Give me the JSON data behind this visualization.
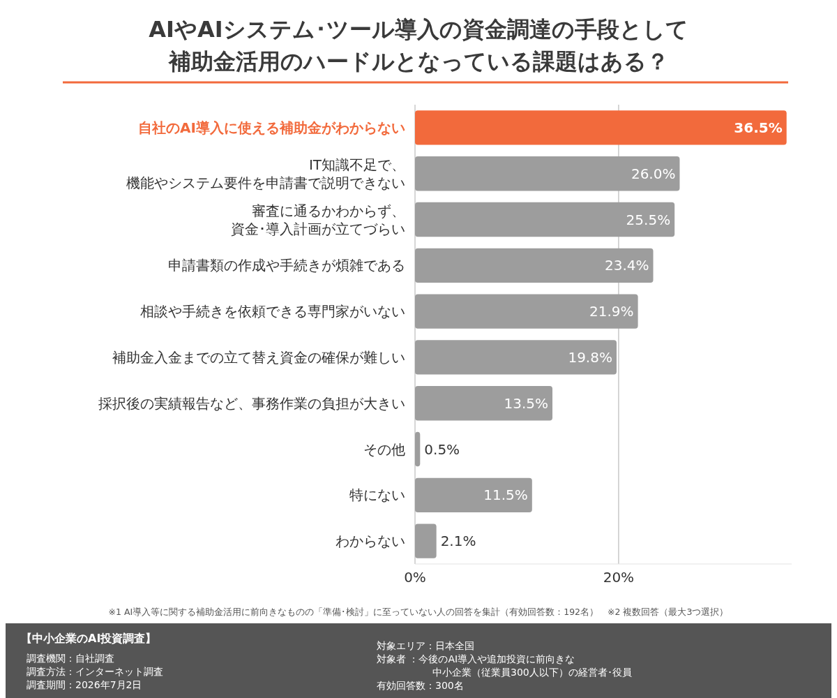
{
  "chart_data": {
    "type": "bar",
    "orientation": "horizontal",
    "title": "AIやAIシステム･ツール導入の資金調達の手段として補助金活用のハードルとなっている課題はある？",
    "categories": [
      "自社のAI導入に使える補助金がわからない",
      "IT知識不足で、機能やシステム要件を申請書で説明できない",
      "審査に通るかわからず、資金･導入計画が立てづらい",
      "申請書類の作成や手続きが煩雑である",
      "相談や手続きを依頼できる専門家がいない",
      "補助金入金までの立て替え資金の確保が難しい",
      "採択後の実績報告など、事務作業の負担が大きい",
      "その他",
      "特にない",
      "わからない"
    ],
    "values": [
      36.5,
      26.0,
      25.5,
      23.4,
      21.9,
      19.8,
      13.5,
      0.5,
      11.5,
      2.1
    ],
    "value_labels": [
      "36.5%",
      "26.0%",
      "25.5%",
      "23.4%",
      "21.9%",
      "19.8%",
      "13.5%",
      "0.5%",
      "11.5%",
      "2.1%"
    ],
    "colors": [
      "#f26a3c",
      "#9d9d9d",
      "#9d9d9d",
      "#9d9d9d",
      "#9d9d9d",
      "#9d9d9d",
      "#9d9d9d",
      "#9d9d9d",
      "#9d9d9d",
      "#9d9d9d"
    ],
    "xlim": [
      0,
      37
    ],
    "xticks": [
      {
        "value": 0,
        "label": "0%"
      },
      {
        "value": 20,
        "label": "20%"
      }
    ],
    "grid": "x",
    "annotations": [
      "※1 AI導入等に関する補助金活用に前向きなものの「準備･検討」に至っていない人の回答を集計（有効回答数：192名）　※2 複数回答（最大3つ選択）",
      "【中小企業のAI投資調査】",
      "調査機関：自社調査",
      "調査方法：インターネット調査",
      "調査期間：2026年7月2日",
      "対象エリア：日本全国",
      "対象者 ：今後のAI導入や追加投資に前向きな中小企業（従業員300人以下）の経営者･役員",
      "有効回答数：300名"
    ]
  }
}
